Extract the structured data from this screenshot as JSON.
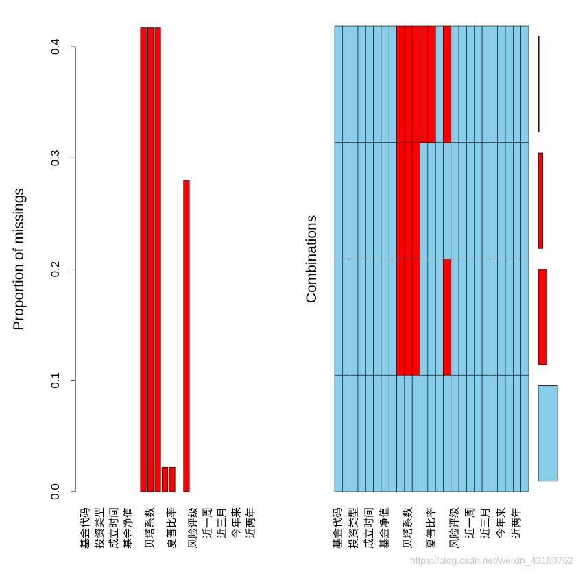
{
  "chart_data": [
    {
      "type": "bar",
      "ylabel": "Proportion of missings",
      "categories": [
        "基金代码",
        null,
        "投资类型",
        null,
        "成立时间",
        null,
        "基金净值",
        null,
        null,
        "贝塔系数",
        null,
        null,
        "夏普比率",
        null,
        null,
        "风险评级",
        null,
        "近一周",
        null,
        "近三月",
        null,
        "今年来",
        null,
        "近两年",
        null
      ],
      "values": [
        0,
        0,
        0,
        0,
        0,
        0,
        0,
        0,
        0.417,
        0.417,
        0.417,
        0.022,
        0.022,
        0,
        0.28,
        0,
        0,
        0,
        0,
        0,
        0,
        0,
        0,
        0,
        0
      ],
      "color": "#ff0000",
      "ylim": [
        0,
        0.418
      ],
      "yticks": [
        {
          "value": 0,
          "label": "0.0"
        },
        0.1,
        0.2,
        0.3,
        0.4
      ]
    },
    {
      "type": "tile",
      "ylabel": "Combinations",
      "categories": [
        "基金代码",
        null,
        "投资类型",
        null,
        "成立时间",
        null,
        "基金净值",
        null,
        null,
        "贝塔系数",
        null,
        null,
        "夏普比率",
        null,
        null,
        "风险评级",
        null,
        "近一周",
        null,
        "近三月",
        null,
        "今年来",
        null,
        "近两年",
        null
      ],
      "colors": {
        "observed": "#87ceeb",
        "missing": "#ff0000"
      },
      "combinations": [
        {
          "pattern": [
            0,
            0,
            0,
            0,
            0,
            0,
            0,
            0,
            1,
            1,
            1,
            1,
            1,
            0,
            1,
            0,
            0,
            0,
            0,
            0,
            0,
            0,
            0,
            0,
            0
          ],
          "proportion": 0.022
        },
        {
          "pattern": [
            0,
            0,
            0,
            0,
            0,
            0,
            0,
            0,
            1,
            1,
            1,
            0,
            0,
            0,
            0,
            0,
            0,
            0,
            0,
            0,
            0,
            0,
            0,
            0,
            0
          ],
          "proportion": 0.137
        },
        {
          "pattern": [
            0,
            0,
            0,
            0,
            0,
            0,
            0,
            0,
            1,
            1,
            1,
            0,
            0,
            0,
            1,
            0,
            0,
            0,
            0,
            0,
            0,
            0,
            0,
            0,
            0
          ],
          "proportion": 0.258
        },
        {
          "pattern": [
            0,
            0,
            0,
            0,
            0,
            0,
            0,
            0,
            0,
            0,
            0,
            0,
            0,
            0,
            0,
            0,
            0,
            0,
            0,
            0,
            0,
            0,
            0,
            0,
            0
          ],
          "proportion": 0.583
        }
      ]
    }
  ],
  "watermark": "https://blog.csdn.net/weixin_43180762"
}
